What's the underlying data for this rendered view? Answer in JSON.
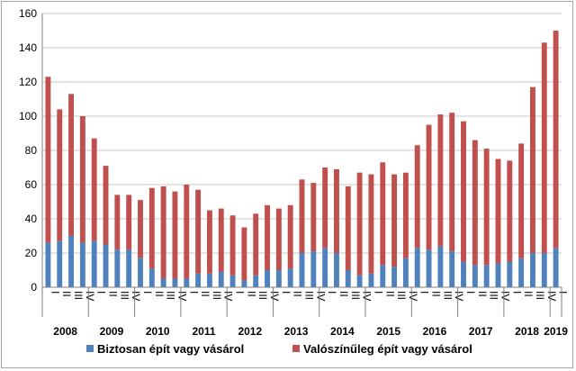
{
  "chart_data": {
    "type": "bar",
    "stacked": true,
    "title": "",
    "xlabel": "",
    "ylabel": "",
    "ylim": [
      0,
      160
    ],
    "yticks": [
      0,
      20,
      40,
      60,
      80,
      100,
      120,
      140,
      160
    ],
    "grid": true,
    "legend_position": "bottom",
    "quarter_labels": [
      "I",
      "II",
      "III",
      "IV"
    ],
    "years": [
      {
        "label": "2008",
        "quarters": 4
      },
      {
        "label": "2009",
        "quarters": 4
      },
      {
        "label": "2010",
        "quarters": 4
      },
      {
        "label": "2011",
        "quarters": 4
      },
      {
        "label": "2012",
        "quarters": 4
      },
      {
        "label": "2013",
        "quarters": 4
      },
      {
        "label": "2014",
        "quarters": 4
      },
      {
        "label": "2015",
        "quarters": 4
      },
      {
        "label": "2016",
        "quarters": 4
      },
      {
        "label": "2017",
        "quarters": 4
      },
      {
        "label": "2018",
        "quarters": 4
      },
      {
        "label": "2019",
        "quarters": 1
      }
    ],
    "series": [
      {
        "name": "Biztosan épít vagy vásárol",
        "color": "#4f81bd",
        "values": [
          26,
          27,
          30,
          26,
          27,
          25,
          22,
          22,
          17,
          11,
          5,
          5,
          5,
          8,
          8,
          9,
          7,
          4,
          7,
          10,
          10,
          11,
          20,
          21,
          23,
          20,
          10,
          7,
          8,
          13,
          12,
          17,
          23,
          22,
          24,
          21,
          15,
          13,
          13,
          14,
          15,
          17,
          20,
          20,
          23
        ]
      },
      {
        "name": "Valószínűleg épít vagy vásárol",
        "color": "#c0504d",
        "values": [
          97,
          77,
          83,
          74,
          60,
          46,
          32,
          32,
          34,
          47,
          54,
          51,
          55,
          49,
          37,
          37,
          35,
          31,
          36,
          38,
          36,
          37,
          43,
          40,
          47,
          49,
          49,
          60,
          58,
          60,
          54,
          50,
          60,
          73,
          77,
          81,
          82,
          73,
          68,
          61,
          59,
          67,
          97,
          123,
          127
        ]
      }
    ]
  }
}
